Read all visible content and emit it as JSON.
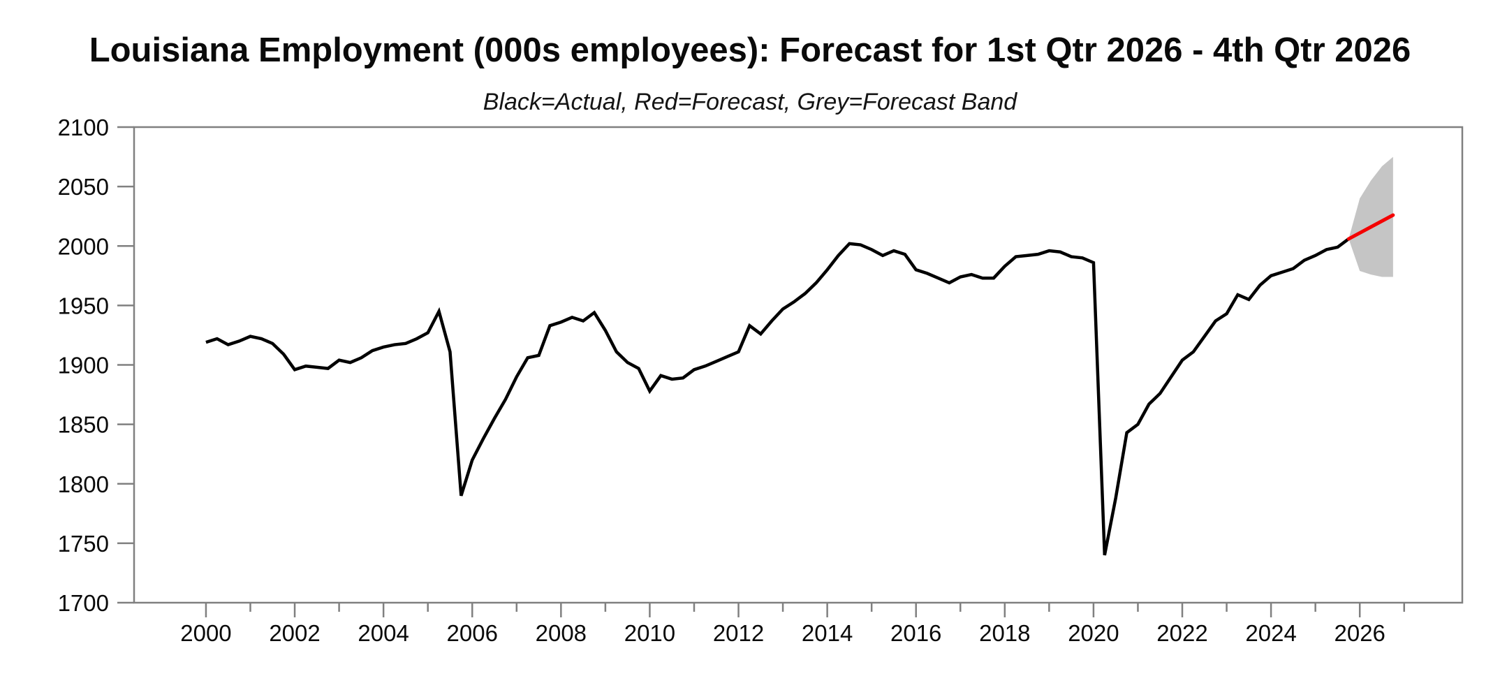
{
  "chart_data": {
    "type": "line",
    "title": "Louisiana Employment (000s employees): Forecast for 1st Qtr 2026 - 4th Qtr 2026",
    "subtitle": "Black=Actual, Red=Forecast, Grey=Forecast Band",
    "legend_note": {
      "actual_label": "Black=Actual",
      "forecast_label": "Red=Forecast",
      "band_label": "Grey=Forecast Band"
    },
    "colors": {
      "actual": "#000000",
      "forecast": "#f40000",
      "band": "#c5c5c5",
      "axis": "#808080"
    },
    "x_axis": {
      "range": [
        1998.38,
        2028.31
      ],
      "major_ticks": [
        2000,
        2002,
        2004,
        2006,
        2008,
        2010,
        2012,
        2014,
        2016,
        2018,
        2020,
        2022,
        2024,
        2026
      ],
      "minor_ticks": [
        2001,
        2003,
        2005,
        2007,
        2009,
        2011,
        2013,
        2015,
        2017,
        2019,
        2021,
        2023,
        2025,
        2027
      ],
      "grid": false
    },
    "y_axis": {
      "range": [
        1700,
        2100
      ],
      "ticks": [
        1700,
        1750,
        1800,
        1850,
        1900,
        1950,
        2000,
        2050,
        2100
      ],
      "grid": false
    },
    "series": [
      {
        "name": "Actual",
        "style": "line",
        "x_start": 2000.0,
        "x_step": 0.25,
        "values": [
          1919,
          1922,
          1917,
          1920,
          1924,
          1922,
          1918,
          1909,
          1896,
          1899,
          1898,
          1897,
          1904,
          1902,
          1906,
          1912,
          1915,
          1917,
          1918,
          1922,
          1927,
          1945,
          1911,
          1790,
          1820,
          1838,
          1855,
          1871,
          1890,
          1906,
          1908,
          1933,
          1936,
          1940,
          1937,
          1944,
          1929,
          1911,
          1902,
          1897,
          1878,
          1891,
          1888,
          1889,
          1896,
          1899,
          1903,
          1907,
          1911,
          1933,
          1926,
          1937,
          1947,
          1953,
          1960,
          1969,
          1980,
          1992,
          2002,
          2001,
          1997,
          1992,
          1996,
          1993,
          1980,
          1977,
          1973,
          1969,
          1974,
          1976,
          1973,
          1973,
          1983,
          1991,
          1992,
          1993,
          1996,
          1995,
          1991,
          1990,
          1986,
          1740,
          1788,
          1843,
          1850,
          1867,
          1876,
          1890,
          1904,
          1911,
          1924,
          1937,
          1943,
          1959,
          1955,
          1967,
          1975,
          1978,
          1981,
          1988,
          1992,
          1997,
          1999,
          2006
        ]
      },
      {
        "name": "Forecast",
        "style": "line",
        "x": [
          2025.75,
          2026.0,
          2026.25,
          2026.5,
          2026.75
        ],
        "values": [
          2006,
          2011,
          2016,
          2021,
          2026
        ]
      },
      {
        "name": "Forecast Band",
        "style": "band",
        "x": [
          2025.75,
          2026.0,
          2026.25,
          2026.5,
          2026.75
        ],
        "upper": [
          2006,
          2040,
          2055,
          2067,
          2075
        ],
        "lower": [
          2006,
          1979,
          1976,
          1974,
          1974
        ]
      }
    ]
  }
}
